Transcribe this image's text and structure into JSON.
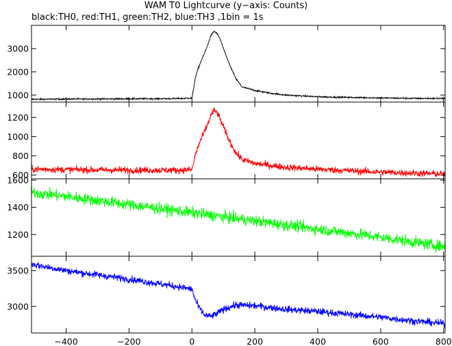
{
  "title": "WAM T0 Lightcurve (y−axis: Counts)",
  "subtitle": "black:TH0, red:TH1, green:TH2, blue:TH3 ,1bin = 1s",
  "chart_data": {
    "type": "line",
    "x_range": [
      -510,
      805
    ],
    "x_ticks": [
      -400,
      -200,
      0,
      200,
      400,
      600,
      800
    ],
    "x_tick_labels": [
      "−400",
      "−200",
      "0",
      "200",
      "400",
      "600",
      "800"
    ],
    "bin_seconds": 1,
    "panels": [
      {
        "channel": "TH0",
        "color": "#000000",
        "ylim": [
          700,
          4000
        ],
        "y_ticks": [
          1000,
          2000,
          3000
        ],
        "y_tick_labels": [
          "1000",
          "2000",
          "3000"
        ],
        "points": [
          [
            -510,
            820
          ],
          [
            -400,
            830
          ],
          [
            -200,
            840
          ],
          [
            -50,
            850
          ],
          [
            0,
            870
          ],
          [
            5,
            1250
          ],
          [
            10,
            1700
          ],
          [
            20,
            2150
          ],
          [
            30,
            2500
          ],
          [
            40,
            2800
          ],
          [
            50,
            3150
          ],
          [
            60,
            3550
          ],
          [
            70,
            3750
          ],
          [
            80,
            3650
          ],
          [
            90,
            3400
          ],
          [
            100,
            3000
          ],
          [
            120,
            2300
          ],
          [
            140,
            1700
          ],
          [
            160,
            1350
          ],
          [
            200,
            1200
          ],
          [
            250,
            1080
          ],
          [
            300,
            1000
          ],
          [
            400,
            930
          ],
          [
            500,
            900
          ],
          [
            600,
            880
          ],
          [
            700,
            860
          ],
          [
            805,
            855
          ]
        ],
        "noise": 22
      },
      {
        "channel": "TH1",
        "color": "#ff0000",
        "ylim": [
          560,
          1360
        ],
        "y_ticks": [
          600,
          800,
          1000,
          1200
        ],
        "y_tick_labels": [
          "600",
          "800",
          "1000",
          "1200"
        ],
        "points": [
          [
            -510,
            660
          ],
          [
            -200,
            650
          ],
          [
            -50,
            650
          ],
          [
            0,
            655
          ],
          [
            5,
            720
          ],
          [
            10,
            800
          ],
          [
            20,
            900
          ],
          [
            30,
            980
          ],
          [
            40,
            1050
          ],
          [
            50,
            1130
          ],
          [
            60,
            1220
          ],
          [
            70,
            1270
          ],
          [
            80,
            1250
          ],
          [
            90,
            1180
          ],
          [
            100,
            1100
          ],
          [
            120,
            950
          ],
          [
            140,
            830
          ],
          [
            160,
            760
          ],
          [
            200,
            720
          ],
          [
            300,
            680
          ],
          [
            400,
            660
          ],
          [
            600,
            630
          ],
          [
            805,
            610
          ]
        ],
        "noise": 25
      },
      {
        "channel": "TH2",
        "color": "#00ff00",
        "ylim": [
          1040,
          1610
        ],
        "y_ticks": [
          1200,
          1400,
          1600
        ],
        "y_tick_labels": [
          "1200",
          "1400",
          "1600"
        ],
        "points": [
          [
            -510,
            1510
          ],
          [
            -400,
            1480
          ],
          [
            -200,
            1420
          ],
          [
            0,
            1360
          ],
          [
            200,
            1300
          ],
          [
            400,
            1240
          ],
          [
            600,
            1180
          ],
          [
            805,
            1110
          ]
        ],
        "noise": 30
      },
      {
        "channel": "TH3",
        "color": "#0000ff",
        "ylim": [
          2630,
          3700
        ],
        "y_ticks": [
          3000,
          3500
        ],
        "y_tick_labels": [
          "3000",
          "3500"
        ],
        "points": [
          [
            -510,
            3590
          ],
          [
            -400,
            3500
          ],
          [
            -200,
            3380
          ],
          [
            -50,
            3280
          ],
          [
            0,
            3240
          ],
          [
            10,
            3100
          ],
          [
            20,
            3000
          ],
          [
            40,
            2880
          ],
          [
            60,
            2860
          ],
          [
            80,
            2900
          ],
          [
            100,
            2960
          ],
          [
            140,
            3020
          ],
          [
            200,
            3010
          ],
          [
            300,
            2960
          ],
          [
            400,
            2930
          ],
          [
            500,
            2890
          ],
          [
            600,
            2850
          ],
          [
            700,
            2800
          ],
          [
            805,
            2760
          ]
        ],
        "noise": 35
      }
    ]
  }
}
